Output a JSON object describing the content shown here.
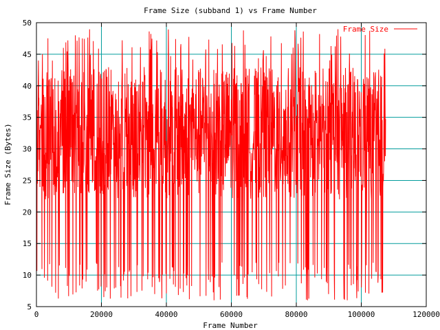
{
  "colors": {
    "series": "#ff0000",
    "grid": "#009b9b",
    "axis": "#000000",
    "background": "#ffffff"
  },
  "chart_data": {
    "type": "line",
    "title": "Frame Size (subband 1) vs Frame Number",
    "xlabel": "Frame Number",
    "ylabel": "Frame Size (Bytes)",
    "xlim": [
      0,
      120000
    ],
    "ylim": [
      5,
      50
    ],
    "x_ticks": [
      0,
      20000,
      40000,
      60000,
      80000,
      100000,
      120000
    ],
    "y_ticks": [
      5,
      10,
      15,
      20,
      25,
      30,
      35,
      40,
      45,
      50
    ],
    "grid": true,
    "legend_position": "top-right",
    "series": [
      {
        "name": "Frame Size",
        "color": "#ff0000",
        "x_range": [
          0,
          107500
        ],
        "y_min": 6,
        "y_max": 49,
        "typical_range": [
          22,
          43
        ],
        "dense_line": true
      }
    ]
  }
}
